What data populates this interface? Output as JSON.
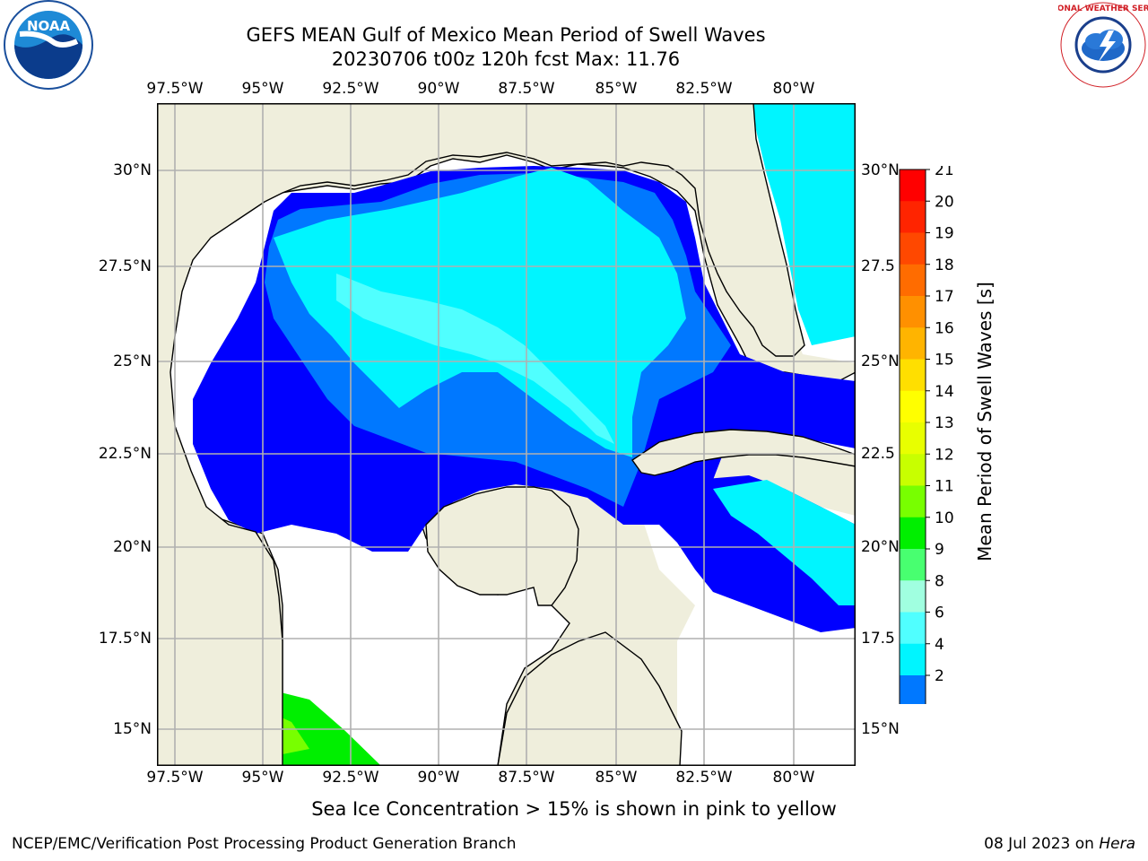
{
  "title": {
    "line1": "GEFS MEAN Gulf of Mexico Mean Period of Swell Waves",
    "line2": "20230706 t00z 120h fcst   Max: 11.76"
  },
  "logos": {
    "left": {
      "name": "noaa-logo",
      "text": "NOAA"
    },
    "right": {
      "name": "national-weather-service-logo",
      "text": "NATIONAL WEATHER SERVICE"
    }
  },
  "map": {
    "lon_labels_top": [
      "97.5°W",
      "95°W",
      "92.5°W",
      "90°W",
      "87.5°W",
      "85°W",
      "82.5°W",
      "80°W"
    ],
    "lon_labels_bottom": [
      "97.5°W",
      "95°W",
      "92.5°W",
      "90°W",
      "87.5°W",
      "85°W",
      "82.5°W",
      "80°W"
    ],
    "lat_labels_left": [
      "30°N",
      "27.5°N",
      "25°N",
      "22.5°N",
      "20°N",
      "17.5°N",
      "15°N"
    ],
    "lat_labels_right": [
      "30°N",
      "27.5",
      "25°N",
      "22.5",
      "20°N",
      "17.5",
      "15°N"
    ],
    "colors": {
      "land": "#efeedc",
      "ocean_nodata": "#ffffff",
      "grid": "#b0b0b0"
    }
  },
  "colorbar": {
    "label": "Mean Period of Swell Waves [s]",
    "ticks": [
      "21",
      "20",
      "19",
      "18",
      "17",
      "16",
      "15",
      "14",
      "13",
      "12",
      "11",
      "10",
      "9",
      "8",
      "6",
      "4",
      "2"
    ],
    "colors": [
      "#ff0000",
      "#ff2400",
      "#ff4800",
      "#ff6c00",
      "#ff9000",
      "#ffb400",
      "#ffdf00",
      "#ffff00",
      "#e8ff00",
      "#c8ff00",
      "#78ff00",
      "#00ef00",
      "#48ff70",
      "#a0ffe0",
      "#50ffff",
      "#00f5ff",
      "#0078ff"
    ],
    "extend_color": "#0000ff"
  },
  "caption": "Sea Ice Concentration > 15% is shown in pink to yellow",
  "footer": {
    "left": "NCEP/EMC/Verification Post Processing Product Generation Branch",
    "right_prefix": "08 Jul 2023 on ",
    "right_host": "Hera"
  }
}
